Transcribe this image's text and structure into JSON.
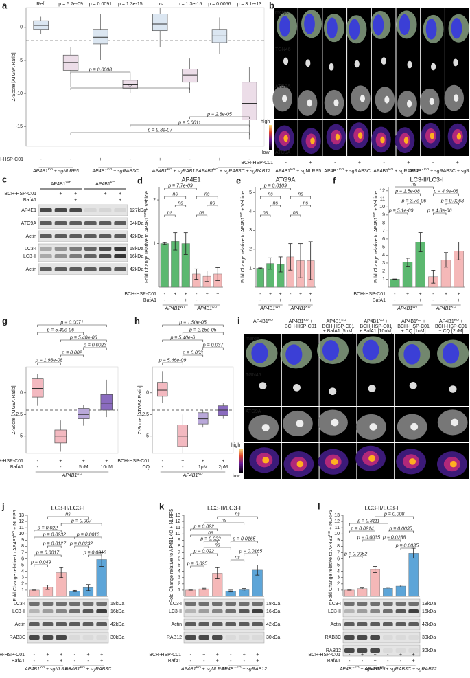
{
  "panels": {
    "b": {
      "letter": "b",
      "channels": [
        "merge",
        "TGN46",
        "ATG9A",
        "ATG9A"
      ],
      "scale": [
        "high",
        "low"
      ],
      "row": {
        "label": "BCH-HSP-C01",
        "values": [
          "-",
          "+",
          "-",
          "+",
          "-",
          "+",
          "-",
          "+"
        ]
      },
      "groups": [
        {
          "pre": "AP4B1",
          "sup": "KO",
          "post": " + sgNLRP5"
        },
        {
          "pre": "AP4B1",
          "sup": "KO",
          "post": " + sgRAB3C"
        },
        {
          "pre": "AP4B1",
          "sup": "KO",
          "post": " + sgRAB12"
        },
        {
          "pre": "AP4B1",
          "sup": "KO",
          "post": " + sgRAB3C + sgRAB12"
        }
      ]
    },
    "c": {
      "letter": "c",
      "headers": [
        {
          "pre": "AP4B1",
          "sup": "WT"
        },
        {
          "pre": "AP4B1",
          "sup": "KO"
        }
      ],
      "rows": [
        {
          "label": "BCH-HSP-C01",
          "values": [
            "+",
            "+",
            "+",
            "+"
          ]
        },
        {
          "label": "BafA1",
          "values": [
            "+",
            "+"
          ]
        }
      ],
      "bands": [
        {
          "names": [
            "AP4E1"
          ],
          "sizes": [
            "127kDa"
          ]
        },
        {
          "names": [
            "ATG9A"
          ],
          "sizes": [
            "94kDa"
          ]
        },
        {
          "names": [
            "Actin"
          ],
          "sizes": [
            "42kDa"
          ]
        },
        {
          "names": [
            "LC3-I",
            "LC3-II"
          ],
          "sizes": [
            "18kDa",
            "16kDa"
          ]
        },
        {
          "names": [
            "Actin"
          ],
          "sizes": [
            "42kDa"
          ]
        }
      ]
    },
    "i": {
      "letter": "i",
      "channels": [
        "merge",
        "TGN46",
        "ATG9A"
      ],
      "scale": [
        "high",
        "low"
      ],
      "headers": [
        [
          {
            "pre": "AP4B1",
            "sup": "KO"
          }
        ],
        [
          {
            "pre": "AP4B1",
            "sup": "KO",
            "post": " +"
          },
          "BCH-HSP-C01"
        ],
        [
          {
            "pre": "AP4B1",
            "sup": "KO",
            "post": " +"
          },
          "BCH-HSP-C01",
          "+ BafA1 [5nM]"
        ],
        [
          {
            "pre": "AP4B1",
            "sup": "KO",
            "post": " +"
          },
          "BCH-HSP-C01",
          "+ BafA1 [10nM]"
        ],
        [
          {
            "pre": "AP4B1",
            "sup": "KO",
            "post": " +"
          },
          "BCH-HSP-C01",
          "+ CQ [1nM]"
        ],
        [
          {
            "pre": "AP4B1",
            "sup": "KO",
            "post": " +"
          },
          "BCH-HSP-C01",
          "+ CQ [2nM]"
        ]
      ]
    }
  },
  "chart_data": [
    {
      "type": "box",
      "letter": "a",
      "ylabel": "Z-Score [ATG9A Ratio]",
      "ylim": [
        -18,
        3
      ],
      "yticks": [
        0,
        -5,
        -10,
        -15
      ],
      "threshold": -2,
      "boxes": [
        {
          "lo": -1,
          "q1": -0.3,
          "median": 0.3,
          "q3": 1,
          "hi": 1.6
        },
        {
          "lo": -9,
          "q1": -6.5,
          "median": -5.3,
          "q3": -4.2,
          "hi": -3
        },
        {
          "lo": -5,
          "q1": -2.5,
          "median": -1.5,
          "q3": -0.3,
          "hi": 2
        },
        {
          "lo": -10,
          "q1": -9.2,
          "median": -8.7,
          "q3": -8,
          "hi": -7
        },
        {
          "lo": -3,
          "q1": -0.5,
          "median": 0.5,
          "q3": 2,
          "hi": 3
        },
        {
          "lo": -10,
          "q1": -8.3,
          "median": -7.2,
          "q3": -6.3,
          "hi": -4.7
        },
        {
          "lo": -4,
          "q1": -2.3,
          "median": -1.3,
          "q3": -0.3,
          "hi": 1.5
        },
        {
          "lo": -17,
          "q1": -14,
          "median": -11.5,
          "q3": -8.3,
          "hi": -6
        }
      ],
      "colors": [
        "#dbe6f1",
        "#ecdde8",
        "#dbe6f1",
        "#ecdde8",
        "#dbe6f1",
        "#ecdde8",
        "#dbe6f1",
        "#ecdde8"
      ],
      "top_labels": [
        "Ref.",
        "p = 5.7e-09",
        "p = 0.0091",
        "p = 1.3e-15",
        "ns",
        "p = 1.3e-15",
        "p = 0.0056",
        "p = 3.1e-13"
      ],
      "annotations": [
        "p = 0.0008",
        "ns",
        "p = 2.8e-05",
        "p = 0.0011",
        "p = 9.8e-07"
      ],
      "rows": [
        {
          "label": "BCH-HSP-C01",
          "values": [
            "-",
            "-",
            "+",
            "-",
            "+",
            "-",
            "+",
            "-"
          ]
        }
      ],
      "groups": [
        {
          "pre": "AP4B1",
          "sup": "KO",
          "post": " + sgNLRP5"
        },
        {
          "pre": "AP4B1",
          "sup": "KO",
          "post": " + sgRAB3C"
        },
        {
          "pre": "AP4B1",
          "sup": "KO",
          "post": " + sgRAB12"
        },
        {
          "pre": "AP4B1",
          "sup": "KO",
          "post": " + sgRAB3C + sgRAB12"
        }
      ]
    },
    {
      "type": "bar",
      "letter": "d",
      "title": "AP4E1",
      "ylabel": {
        "pre": "Fold Change relative to AP4B1",
        "sup": "WT",
        "post": " + Vehicle"
      },
      "ylim": [
        0,
        2.3
      ],
      "yticks": [
        1,
        2
      ],
      "values": [
        1,
        1.05,
        1,
        0.3,
        0.25,
        0.3
      ],
      "errors": [
        0.02,
        0.2,
        0.25,
        0.12,
        0.12,
        0.15
      ],
      "colors": [
        "#5cb870",
        "#5cb870",
        "#5cb870",
        "#f5b8b8",
        "#f5b8b8",
        "#f5b8b8"
      ],
      "annotations": [
        "p = 7.7e-09",
        "ns",
        "ns",
        "ns",
        "ns",
        "ns",
        "ns"
      ],
      "rows": [
        {
          "label": "BCH-HSP-C01",
          "values": [
            "-",
            "+",
            "+",
            "-",
            "+",
            "+"
          ]
        },
        {
          "label": "BafA1",
          "values": [
            "-",
            "-",
            "+",
            "-",
            "-",
            "+"
          ]
        }
      ],
      "groups": [
        {
          "pre": "AP4B1",
          "sup": "WT"
        },
        {
          "pre": "AP4B1",
          "sup": "KO"
        }
      ]
    },
    {
      "type": "bar",
      "letter": "e",
      "title": "ATG9A",
      "ylabel": {
        "pre": "Fold Change relative to AP4B1",
        "sup": "WT",
        "post": " + Vehicle"
      },
      "ylim": [
        0,
        5.3
      ],
      "yticks": [
        1,
        2,
        3,
        4,
        5
      ],
      "values": [
        1,
        1.25,
        1.2,
        1.6,
        1.4,
        1.4
      ],
      "errors": [
        0.02,
        0.3,
        0.4,
        0.7,
        0.9,
        1
      ],
      "colors": [
        "#5cb870",
        "#5cb870",
        "#5cb870",
        "#f5b8b8",
        "#f5b8b8",
        "#f5b8b8"
      ],
      "annotations": [
        "p = 0.0109",
        "ns",
        "ns",
        "ns",
        "ns",
        "ns",
        "ns"
      ],
      "rows": [
        {
          "values": [
            "-",
            "+",
            "+",
            "-",
            "+",
            "+"
          ]
        },
        {
          "values": [
            "-",
            "-",
            "+",
            "-",
            "-",
            "+"
          ]
        }
      ],
      "groups": [
        {
          "pre": "AP4B1",
          "sup": "WT"
        },
        {
          "pre": "AP4B1",
          "sup": "KO"
        }
      ]
    },
    {
      "type": "bar",
      "letter": "f",
      "title": "LC3-II/LC3-I",
      "ylabel": {
        "pre": "Fold Change relative to AP4B1",
        "sup": "WT",
        "post": " + Vehicle"
      },
      "ylim": [
        0,
        12.5
      ],
      "yticks": [
        1,
        2,
        3,
        4,
        5,
        6,
        7,
        8,
        9,
        10,
        11,
        12
      ],
      "values": [
        1,
        3.1,
        5.6,
        1.3,
        3.4,
        4.5
      ],
      "errors": [
        0.02,
        0.5,
        1.2,
        0.8,
        0.9,
        1.1
      ],
      "colors": [
        "#5cb870",
        "#5cb870",
        "#5cb870",
        "#f5b8b8",
        "#f5b8b8",
        "#f5b8b8"
      ],
      "annotations": [
        "ns",
        "p = 1.5e-08",
        "p = 4.9e-08",
        "p = 3.7e-06",
        "p = 0.0268",
        "p = 5.1e-09",
        "p = 4.8e-06"
      ],
      "rows": [
        {
          "label": "BCH-HSP-C01",
          "values": [
            "-",
            "+",
            "+",
            "-",
            "+",
            "+"
          ]
        },
        {
          "label": "BafA1",
          "values": [
            "-",
            "-",
            "+",
            "-",
            "-",
            "+"
          ]
        }
      ],
      "groups": [
        {
          "pre": "AP4B1",
          "sup": "WT"
        },
        {
          "pre": "AP4B1",
          "sup": "KO"
        }
      ]
    },
    {
      "type": "box",
      "letter": "g",
      "ylabel": "Z-Score [ATG9A Ratio]",
      "ylim": [
        -7,
        3
      ],
      "yticks": [
        0,
        {
          "value": -2.5,
          "label": "-2.5"
        },
        -5
      ],
      "threshold": -2,
      "boxes": [
        {
          "lo": -1.5,
          "q1": -0.5,
          "median": 0.5,
          "q3": 1.6,
          "hi": 2.2
        },
        {
          "lo": -6.8,
          "q1": -5.8,
          "median": -5,
          "q3": -4.3,
          "hi": -3.2
        },
        {
          "lo": -3.8,
          "q1": -3,
          "median": -2.5,
          "q3": -1.8,
          "hi": -1.4
        },
        {
          "lo": -2.8,
          "q1": -2,
          "median": -1.2,
          "q3": -0.2,
          "hi": 1.5
        }
      ],
      "colors": [
        "#f3b9c0",
        "#f3b9c0",
        "#b9a8d9",
        "#8a6bbf"
      ],
      "annotations": [
        "p = 0.0071",
        "p = 5.40e-06",
        "p = 5.40e-06",
        "p = 0.0023",
        "p = 0.002",
        "p = 1.98e-08"
      ],
      "rows": [
        {
          "label": "BCH-HSP-C01",
          "values": [
            "-",
            "+",
            "+",
            "+"
          ]
        },
        {
          "label": "BafA1",
          "values": [
            "-",
            "-",
            "5nM",
            "10nM"
          ]
        }
      ],
      "groups": [
        {
          "pre": "AP4B1",
          "sup": "KO"
        }
      ]
    },
    {
      "type": "box",
      "letter": "h",
      "ylabel": "Z-Score [ATG9A Ratio]",
      "ylim": [
        -7,
        3
      ],
      "yticks": [
        0,
        {
          "value": -2.5,
          "label": "-2.5"
        },
        -5
      ],
      "threshold": -2,
      "boxes": [
        {
          "lo": -1.2,
          "q1": -0.4,
          "median": 0.3,
          "q3": 1.2,
          "hi": 2.5
        },
        {
          "lo": -7,
          "q1": -6.2,
          "median": -5,
          "q3": -3.7,
          "hi": -2.5
        },
        {
          "lo": -4,
          "q1": -3.6,
          "median": -3,
          "q3": -2.3,
          "hi": -2
        },
        {
          "lo": -3,
          "q1": -2.6,
          "median": -2,
          "q3": -1.5,
          "hi": -1.2
        }
      ],
      "colors": [
        "#f3b9c0",
        "#f3b9c0",
        "#b9a8d9",
        "#8a6bbf"
      ],
      "annotations": [
        "p = 1.50e-05",
        "p = 2.15e-05",
        "p = 5.40e-6",
        "p = 0.037",
        "p = 0.003",
        "p = 5.46e-09"
      ],
      "rows": [
        {
          "label": "BCH-HSP-C01",
          "values": [
            "-",
            "+",
            "+",
            "+"
          ]
        },
        {
          "label": "CQ",
          "values": [
            "-",
            "-",
            "1μM",
            "2μM"
          ]
        }
      ],
      "groups": [
        {
          "pre": "AP4B1",
          "sup": "KO"
        }
      ]
    },
    {
      "type": "bar",
      "letter": "j",
      "title": "LC3-II/LC3-I",
      "ylabel": {
        "pre": "Fold Change relative to AP4B1",
        "sup": "KO",
        "post": " + NLRP5"
      },
      "ylim": [
        0,
        13
      ],
      "yticks": [
        1,
        2,
        3,
        4,
        5,
        6,
        7,
        8,
        9,
        10,
        11,
        12,
        13
      ],
      "values": [
        1,
        1.45,
        3.8,
        0.85,
        1.4,
        5.9
      ],
      "errors": [
        0.02,
        0.35,
        0.8,
        0.1,
        0.5,
        1.1
      ],
      "colors": [
        "#f5b8b8",
        "#f5b8b8",
        "#f5b8b8",
        "#5da5d8",
        "#5da5d8",
        "#5da5d8"
      ],
      "annotations": [
        "ns",
        "p = 0.007",
        "p = 0.022",
        "p = 0.0232",
        "p = 0.0013",
        "p = 0.0127",
        "p = 0.0232",
        "p = 0.0017",
        "p = 0.0013",
        "p = 0.049"
      ],
      "bands": [
        {
          "names": [
            "LC3-I",
            "LC3-II"
          ],
          "sizes": [
            "18kDa",
            "16kDa"
          ]
        },
        {
          "names": [
            "Actin"
          ],
          "sizes": [
            "42kDa"
          ]
        },
        {
          "names": [
            "RAB3C"
          ],
          "sizes": [
            "30kDa"
          ]
        }
      ],
      "rows": [
        {
          "label": "BCH-HSP-C01",
          "values": [
            "-",
            "+",
            "+",
            "-",
            "+",
            "+"
          ]
        },
        {
          "label": "BafA1",
          "values": [
            "-",
            "-",
            "+",
            "-",
            "-",
            "+"
          ]
        }
      ],
      "groups": [
        {
          "pre": "AP4B1",
          "sup": "KO",
          "post": " + sgNLRP5"
        },
        {
          "pre": "AP4B1",
          "sup": "KO",
          "post": " + sgRAB3C"
        }
      ]
    },
    {
      "type": "bar",
      "letter": "k",
      "title": "LC3-II/LC3-I",
      "ylabel": "Fold Change relative to AP4B1KO + NLRP5",
      "ylim": [
        0,
        13
      ],
      "yticks": [
        1,
        2,
        3,
        4,
        5,
        6,
        7,
        8,
        9,
        10,
        11,
        12,
        13
      ],
      "values": [
        1,
        1.2,
        3.7,
        0.85,
        1.05,
        4.2
      ],
      "errors": [
        0.02,
        0.1,
        0.9,
        0.15,
        0.2,
        0.8
      ],
      "colors": [
        "#f5b8b8",
        "#f5b8b8",
        "#f5b8b8",
        "#5da5d8",
        "#5da5d8",
        "#5da5d8"
      ],
      "annotations": [
        "ns",
        "ns",
        "p = 0.022",
        "ns",
        "p = 0.022",
        "p = 0.0165",
        "ns",
        "p = 0.022",
        "p = 0.0165",
        "ns",
        "p = 0.025"
      ],
      "bands": [
        {
          "names": [
            "LC3-I",
            "LC3-II"
          ],
          "sizes": [
            "18kDa",
            "16kDa"
          ]
        },
        {
          "names": [
            "Actin"
          ],
          "sizes": [
            "42kDa"
          ]
        },
        {
          "names": [
            "RAB12"
          ],
          "sizes": [
            "30kDa"
          ]
        }
      ],
      "rows": [
        {
          "label": "BCH-HSP-C01",
          "values": [
            "-",
            "+",
            "+",
            "-",
            "+",
            "+"
          ]
        },
        {
          "label": "BafA1",
          "values": [
            "-",
            "-",
            "+",
            "-",
            "-",
            "+"
          ]
        }
      ],
      "groups": [
        {
          "pre": "AP4B1",
          "sup": "KO",
          "post": " + sgNLRP5"
        },
        {
          "pre": "AP4B1",
          "sup": "KO",
          "post": " + sgRAB12"
        }
      ]
    },
    {
      "type": "bar",
      "letter": "l",
      "title": "LC3-II/LC3-I",
      "ylabel": {
        "pre": "Fold Change relative to AP4B1",
        "sup": "KO",
        "post": " + NLRP5"
      },
      "ylim": [
        0,
        13
      ],
      "yticks": [
        1,
        2,
        3,
        4,
        5,
        6,
        7,
        8,
        9,
        10,
        11,
        12,
        13
      ],
      "values": [
        1,
        1.25,
        4.3,
        1.3,
        1.65,
        6.9
      ],
      "errors": [
        0.02,
        0.1,
        0.5,
        0.15,
        0.15,
        0.8
      ],
      "colors": [
        "#f5b8b8",
        "#f5b8b8",
        "#f5b8b8",
        "#5da5d8",
        "#5da5d8",
        "#5da5d8"
      ],
      "annotations": [
        "p = 0.008",
        "p = 0.3111",
        "p = 0.0214",
        "p = 0.0035",
        "p = 0.0035",
        "p = 0.0288",
        "p = 0.0035",
        "p = 0.0052"
      ],
      "bands": [
        {
          "names": [
            "LC3-I",
            "LC3-II"
          ],
          "sizes": [
            "18kDa",
            "16kDa"
          ]
        },
        {
          "names": [
            "Actin"
          ],
          "sizes": [
            "42kDa"
          ]
        },
        {
          "names": [
            "RAB3C"
          ],
          "sizes": [
            "30kDa"
          ]
        },
        {
          "names": [
            "RAB12"
          ],
          "sizes": [
            "30kDa"
          ]
        }
      ],
      "rows": [
        {
          "label": "BCH-HSP-C01",
          "values": [
            "-",
            "+",
            "+",
            "-",
            "+",
            "+"
          ]
        },
        {
          "label": "BafA1",
          "values": [
            "-",
            "-",
            "+",
            "-",
            "-",
            "+"
          ]
        }
      ],
      "groups": [
        {
          "pre": "AP4B1",
          "sup": "KO",
          "post": " + sgNLRP5"
        },
        {
          "pre": "AP4B1",
          "sup": "KO",
          "post": " + sgRAB3C + sgRAB12"
        }
      ]
    }
  ]
}
